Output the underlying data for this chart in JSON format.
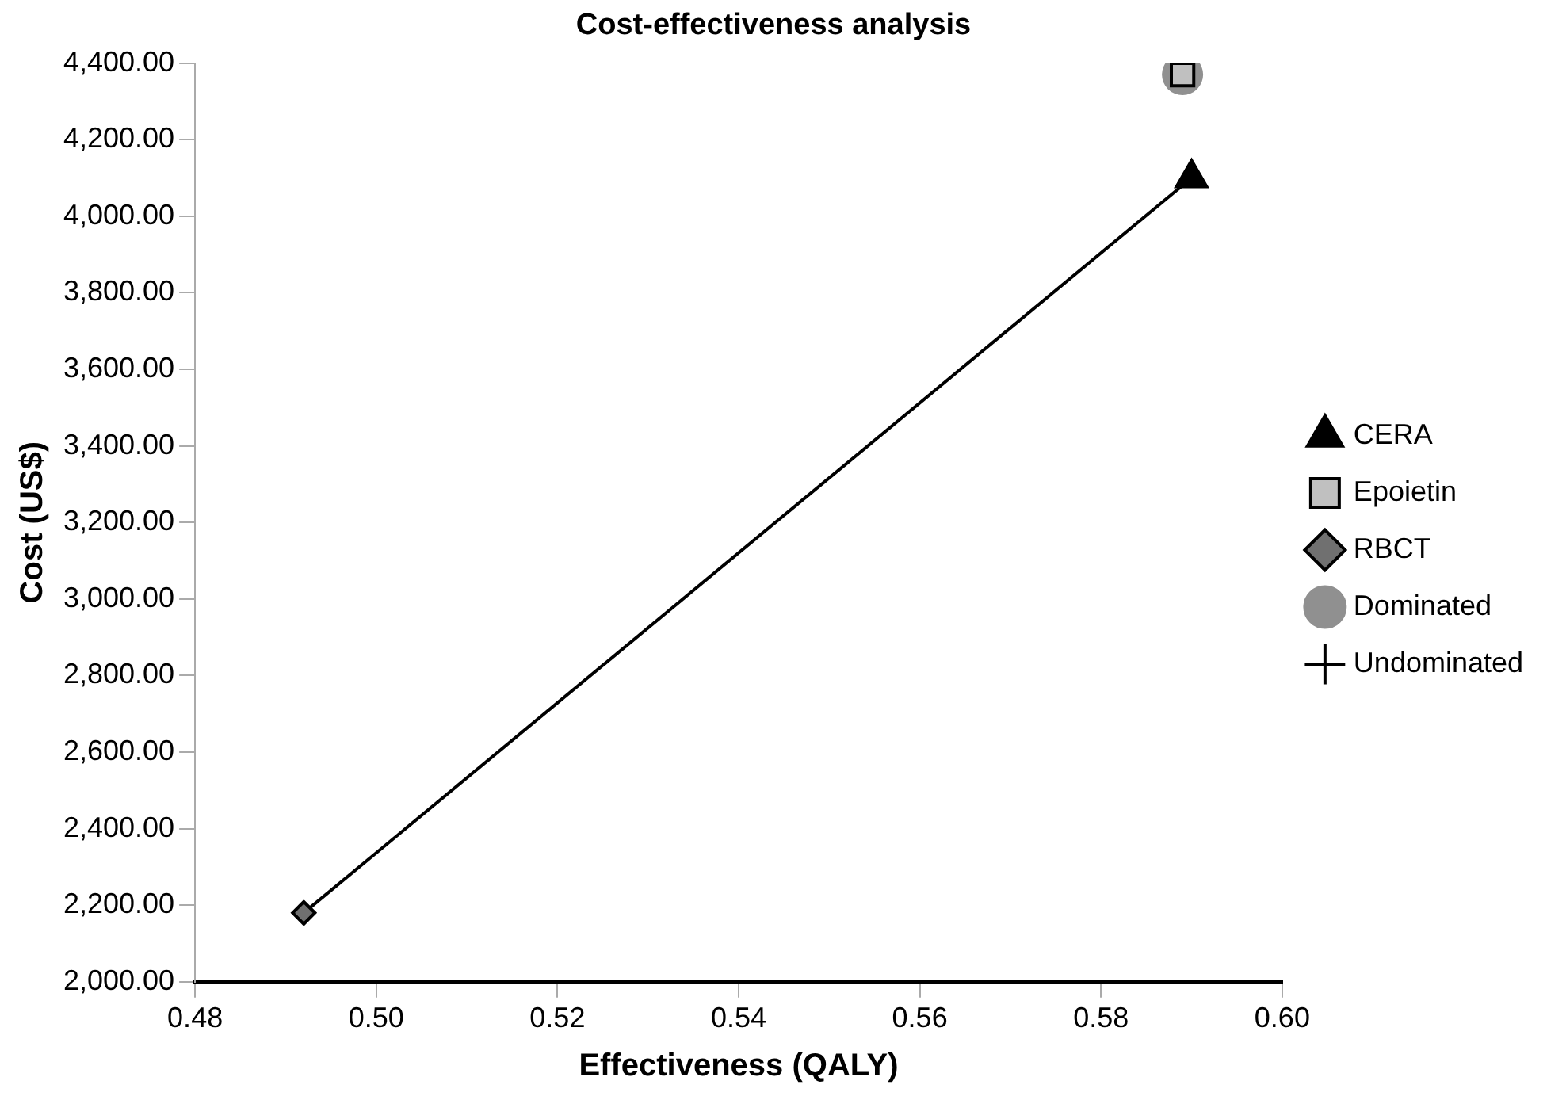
{
  "chart_data": {
    "type": "scatter",
    "title": "Cost-effectiveness analysis",
    "xlabel": "Effectiveness (QALY)",
    "ylabel": "Cost (US$)",
    "xlim": [
      0.48,
      0.6
    ],
    "xticks": [
      0.48,
      {
        "value": 0.5,
        "label": "0.50"
      },
      0.52,
      0.54,
      0.56,
      0.58,
      {
        "value": 0.6,
        "label": "0.60"
      }
    ],
    "ylim": [
      2000,
      4400
    ],
    "yticks": [
      {
        "value": 2000,
        "label": "2,000.00"
      },
      {
        "value": 2200,
        "label": "2,200.00"
      },
      {
        "value": 2400,
        "label": "2,400.00"
      },
      {
        "value": 2600,
        "label": "2,600.00"
      },
      {
        "value": 2800,
        "label": "2,800.00"
      },
      {
        "value": 3000,
        "label": "3,000.00"
      },
      {
        "value": 3200,
        "label": "3,200.00"
      },
      {
        "value": 3400,
        "label": "3,400.00"
      },
      {
        "value": 3600,
        "label": "3,600.00"
      },
      {
        "value": 3800,
        "label": "3,800.00"
      },
      {
        "value": 4000,
        "label": "4,000.00"
      },
      {
        "value": 4200,
        "label": "4,200.00"
      },
      {
        "value": 4400,
        "label": "4,400.00"
      }
    ],
    "grid": false,
    "legend": "right",
    "series": [
      {
        "name": "Undominated",
        "type": "line",
        "color": "#000000",
        "marker": "none",
        "x": [
          0.492,
          0.59
        ],
        "values": [
          2180,
          4100
        ]
      },
      {
        "name": "Dominated",
        "type": "scatter",
        "color": "#909090",
        "marker": "circle",
        "x": [
          0.589
        ],
        "values": [
          4370
        ]
      },
      {
        "name": "CERA",
        "type": "scatter",
        "color": "#000000",
        "marker": "triangle",
        "x": [
          0.59
        ],
        "values": [
          4100
        ]
      },
      {
        "name": "Epoietin",
        "type": "scatter",
        "color": "#c0c0c0",
        "marker": "square",
        "x": [
          0.589
        ],
        "values": [
          4370
        ]
      },
      {
        "name": "RBCT",
        "type": "scatter",
        "color": "#707070",
        "marker": "diamond",
        "x": [
          0.492
        ],
        "values": [
          2180
        ]
      }
    ]
  }
}
